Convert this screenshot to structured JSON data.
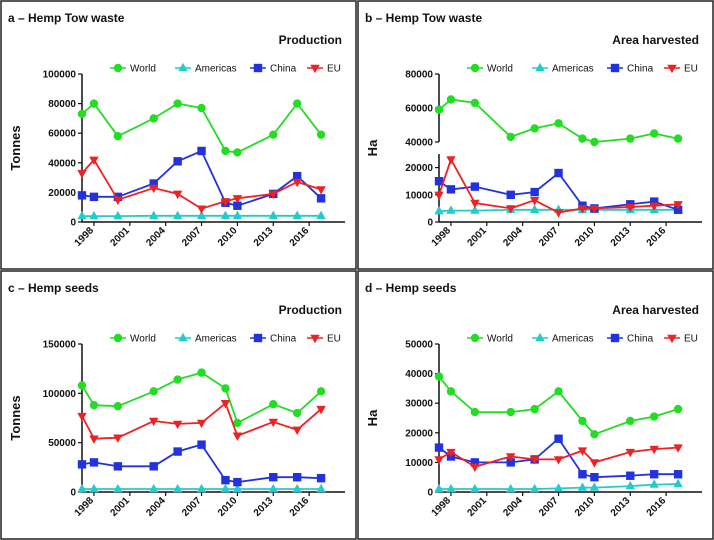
{
  "chart_data": [
    {
      "type": "line",
      "title": "a – Hemp Tow waste",
      "subtitle": "Production",
      "y_label": "Tonnes",
      "x": [
        1997,
        1998,
        2000,
        2003,
        2005,
        2007,
        2009,
        2010,
        2013,
        2015,
        2017
      ],
      "xlim": [
        1997,
        2019
      ],
      "xticks": [
        1998,
        2001,
        2004,
        2007,
        2010,
        2013,
        2016
      ],
      "ylim": [
        0,
        100000
      ],
      "yticks": [
        0,
        20000,
        40000,
        60000,
        80000,
        100000
      ],
      "series": [
        {
          "name": "World",
          "color": "#22dd22",
          "marker": "circle",
          "values": [
            73000,
            80000,
            58000,
            70000,
            80000,
            77000,
            48000,
            47000,
            59000,
            80000,
            59000
          ]
        },
        {
          "name": "Americas",
          "color": "#22cccc",
          "marker": "triangle",
          "values": [
            4000,
            4000,
            4000,
            4200,
            4200,
            4200,
            4200,
            4200,
            4200,
            4200,
            4200
          ]
        },
        {
          "name": "China",
          "color": "#2233dd",
          "marker": "square",
          "values": [
            18000,
            17000,
            17000,
            26000,
            41000,
            48000,
            13000,
            11000,
            19000,
            31000,
            16000
          ]
        },
        {
          "name": "EU",
          "color": "#ee2222",
          "marker": "triangle-down",
          "values": [
            33000,
            42000,
            15000,
            23000,
            19000,
            9000,
            14000,
            16000,
            19000,
            27000,
            22000
          ]
        }
      ]
    },
    {
      "type": "line",
      "title": "b – Hemp Tow waste",
      "subtitle": "Area harvested",
      "y_label": "Ha",
      "x": [
        1997,
        1998,
        2000,
        2003,
        2005,
        2007,
        2009,
        2010,
        2013,
        2015,
        2017
      ],
      "xlim": [
        1997,
        2019
      ],
      "xticks": [
        1998,
        2001,
        2004,
        2007,
        2010,
        2013,
        2016
      ],
      "ylim_segments": [
        [
          0,
          25000
        ],
        [
          40000,
          80000
        ]
      ],
      "yticks": [
        0,
        10000,
        20000,
        40000,
        60000,
        80000
      ],
      "series": [
        {
          "name": "World",
          "color": "#22dd22",
          "marker": "circle",
          "values": [
            59000,
            65000,
            63000,
            43000,
            48000,
            51000,
            42000,
            40000,
            42000,
            45000,
            42000
          ]
        },
        {
          "name": "Americas",
          "color": "#22cccc",
          "marker": "triangle",
          "values": [
            4000,
            4200,
            4200,
            4500,
            4500,
            4500,
            4500,
            4500,
            4500,
            4500,
            4500
          ]
        },
        {
          "name": "China",
          "color": "#2233dd",
          "marker": "square",
          "values": [
            15000,
            12000,
            13000,
            10000,
            11000,
            18000,
            6000,
            5000,
            6500,
            7500,
            4500
          ]
        },
        {
          "name": "EU",
          "color": "#ee2222",
          "marker": "triangle-down",
          "values": [
            10000,
            23000,
            7000,
            5000,
            8000,
            3500,
            5000,
            5000,
            5500,
            6000,
            6500
          ]
        }
      ]
    },
    {
      "type": "line",
      "title": "c – Hemp seeds",
      "subtitle": "Production",
      "y_label": "Tonnes",
      "x": [
        1997,
        1998,
        2000,
        2003,
        2005,
        2007,
        2009,
        2010,
        2013,
        2015,
        2017
      ],
      "xlim": [
        1997,
        2019
      ],
      "xticks": [
        1998,
        2001,
        2004,
        2007,
        2010,
        2013,
        2016
      ],
      "ylim": [
        0,
        150000
      ],
      "yticks": [
        0,
        50000,
        100000,
        150000
      ],
      "series": [
        {
          "name": "World",
          "color": "#22dd22",
          "marker": "circle",
          "values": [
            108000,
            88000,
            87000,
            102000,
            114000,
            121000,
            105000,
            70000,
            89000,
            80000,
            102000
          ]
        },
        {
          "name": "Americas",
          "color": "#22cccc",
          "marker": "triangle",
          "values": [
            3000,
            3000,
            3000,
            3000,
            3000,
            3000,
            3000,
            3000,
            3000,
            3000,
            3000
          ]
        },
        {
          "name": "China",
          "color": "#2233dd",
          "marker": "square",
          "values": [
            28000,
            30000,
            26000,
            26000,
            41000,
            48000,
            12000,
            10000,
            15000,
            15000,
            14000
          ]
        },
        {
          "name": "EU",
          "color": "#ee2222",
          "marker": "triangle-down",
          "values": [
            77000,
            54000,
            55000,
            72000,
            69000,
            70000,
            90000,
            57000,
            71000,
            63000,
            84000
          ]
        }
      ]
    },
    {
      "type": "line",
      "title": "d – Hemp seeds",
      "subtitle": "Area harvested",
      "y_label": "Ha",
      "x": [
        1997,
        1998,
        2000,
        2003,
        2005,
        2007,
        2009,
        2010,
        2013,
        2015,
        2017
      ],
      "xlim": [
        1997,
        2019
      ],
      "xticks": [
        1998,
        2001,
        2004,
        2007,
        2010,
        2013,
        2016
      ],
      "ylim": [
        0,
        50000
      ],
      "yticks": [
        0,
        10000,
        20000,
        30000,
        40000,
        50000
      ],
      "series": [
        {
          "name": "World",
          "color": "#22dd22",
          "marker": "circle",
          "values": [
            39000,
            34000,
            27000,
            27000,
            28000,
            34000,
            24000,
            19500,
            24000,
            25500,
            28000
          ]
        },
        {
          "name": "Americas",
          "color": "#22cccc",
          "marker": "triangle",
          "values": [
            1000,
            1000,
            1000,
            1000,
            1000,
            1200,
            1500,
            1500,
            2000,
            2500,
            2700
          ]
        },
        {
          "name": "China",
          "color": "#2233dd",
          "marker": "square",
          "values": [
            15000,
            12000,
            10000,
            10000,
            11000,
            18000,
            6000,
            5000,
            5500,
            6000,
            6000
          ]
        },
        {
          "name": "EU",
          "color": "#ee2222",
          "marker": "triangle-down",
          "values": [
            11000,
            13500,
            8500,
            12000,
            11000,
            11000,
            14000,
            10000,
            13500,
            14500,
            15000
          ]
        }
      ]
    }
  ]
}
